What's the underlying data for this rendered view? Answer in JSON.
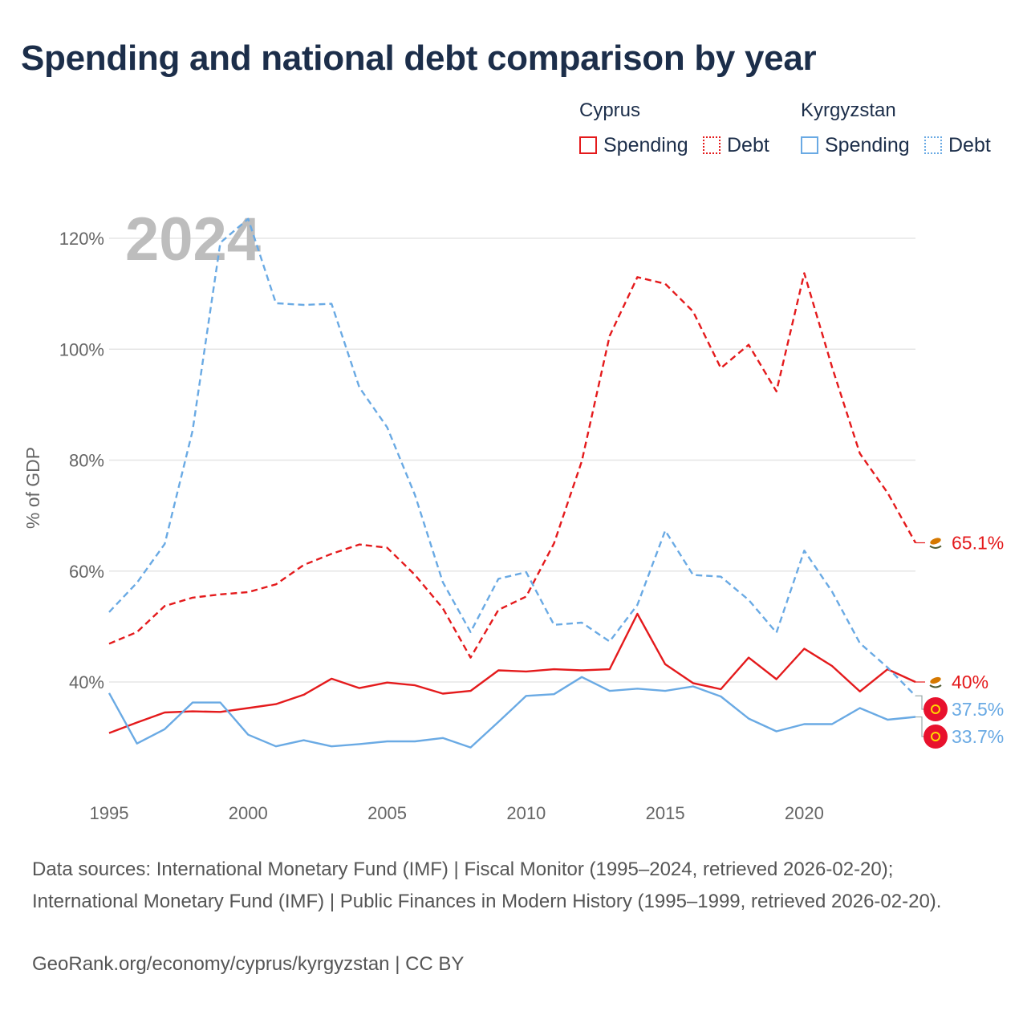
{
  "title": "Spending and national debt comparison by year",
  "legend": {
    "cyprus": {
      "label": "Cyprus",
      "spending": "Spending",
      "debt": "Debt"
    },
    "kyrgyzstan": {
      "label": "Kyrgyzstan",
      "spending": "Spending",
      "debt": "Debt"
    }
  },
  "colors": {
    "cyprus": "#e41a1c",
    "kyrgyzstan": "#6aaae4",
    "grid": "#e6e6e6",
    "axis_text": "#666666",
    "watermark": "#bdbdbd"
  },
  "chart_data": {
    "type": "line",
    "year_watermark": "2024",
    "ylabel": "% of GDP",
    "xlim": [
      1995,
      2024
    ],
    "ylim": [
      25,
      125
    ],
    "x_ticks": [
      "1995",
      "2000",
      "2005",
      "2010",
      "2015",
      "2020"
    ],
    "y_ticks": [
      "40%",
      "60%",
      "80%",
      "100%",
      "120%"
    ],
    "x": [
      1995,
      1996,
      1997,
      1998,
      1999,
      2000,
      2001,
      2002,
      2003,
      2004,
      2005,
      2006,
      2007,
      2008,
      2009,
      2010,
      2011,
      2012,
      2013,
      2014,
      2015,
      2016,
      2017,
      2018,
      2019,
      2020,
      2021,
      2022,
      2023,
      2024
    ],
    "series": [
      {
        "name": "Cyprus Spending",
        "country": "Cyprus",
        "measure": "Spending",
        "style": "solid",
        "color": "#e41a1c",
        "values": [
          30.8,
          32.7,
          34.5,
          34.7,
          34.6,
          35.3,
          36.0,
          37.7,
          40.6,
          38.9,
          39.9,
          39.4,
          37.9,
          38.4,
          42.1,
          41.9,
          42.3,
          42.1,
          42.3,
          52.3,
          43.2,
          39.8,
          38.7,
          44.4,
          40.5,
          46.0,
          42.9,
          38.3,
          42.3,
          40.0
        ],
        "end_label": "40%"
      },
      {
        "name": "Cyprus Debt",
        "country": "Cyprus",
        "measure": "Debt",
        "style": "dashed",
        "color": "#e41a1c",
        "values": [
          46.9,
          49.0,
          53.7,
          55.2,
          55.8,
          56.2,
          57.6,
          61.1,
          63.1,
          64.8,
          64.2,
          59.3,
          53.3,
          44.4,
          53.0,
          55.4,
          65.0,
          79.8,
          102.4,
          113.0,
          111.8,
          106.8,
          96.6,
          100.8,
          92.4,
          113.7,
          96.8,
          81.2,
          74.1,
          65.1
        ],
        "end_label": "65.1%"
      },
      {
        "name": "Kyrgyzstan Spending",
        "country": "Kyrgyzstan",
        "measure": "Spending",
        "style": "solid",
        "color": "#6aaae4",
        "values": [
          38.0,
          28.9,
          31.5,
          36.3,
          36.3,
          30.5,
          28.4,
          29.5,
          28.4,
          28.8,
          29.3,
          29.3,
          29.9,
          28.2,
          32.8,
          37.5,
          37.8,
          40.9,
          38.4,
          38.8,
          38.4,
          39.2,
          37.4,
          33.4,
          31.1,
          32.4,
          32.4,
          35.3,
          33.2,
          33.7
        ],
        "end_label": "33.7%"
      },
      {
        "name": "Kyrgyzstan Debt",
        "country": "Kyrgyzstan",
        "measure": "Debt",
        "style": "dashed",
        "color": "#6aaae4",
        "values": [
          52.6,
          57.9,
          64.9,
          85.3,
          119.2,
          123.5,
          108.3,
          108.0,
          108.2,
          93.1,
          85.9,
          73.7,
          58.0,
          49.0,
          58.6,
          59.8,
          50.3,
          50.7,
          47.3,
          53.9,
          67.3,
          59.3,
          59.0,
          54.8,
          48.9,
          63.7,
          56.3,
          47.0,
          42.6,
          37.5
        ],
        "end_label": "37.5%"
      }
    ]
  },
  "footer": {
    "sources": "Data sources: International Monetary Fund (IMF) | Fiscal Monitor (1995–2024, retrieved 2026-02-20); International Monetary Fund (IMF) | Public Finances in Modern History (1995–1999, retrieved 2026-02-20).",
    "credit": "GeoRank.org/economy/cyprus/kyrgyzstan | CC BY"
  }
}
